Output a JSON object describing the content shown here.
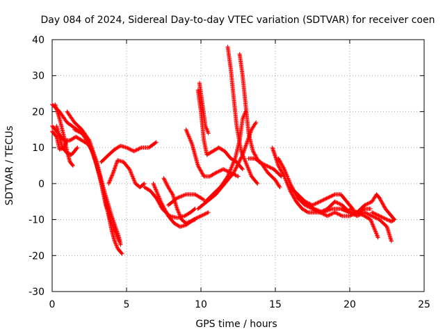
{
  "chart_data": {
    "type": "scatter",
    "title": "Day 084 of 2024, Sidereal Day-to-day VTEC variation (SDTVAR) for receiver coen",
    "xlabel": "GPS time / hours",
    "ylabel": "SDTVAR / TECUs",
    "xlim": [
      0,
      25
    ],
    "ylim": [
      -30,
      40
    ],
    "xticks": [
      0,
      5,
      10,
      15,
      20,
      25
    ],
    "yticks": [
      -30,
      -20,
      -10,
      0,
      10,
      20,
      30,
      40
    ],
    "xtick_labels": [
      "0",
      "5",
      "10",
      "15",
      "20",
      "25"
    ],
    "ytick_labels": [
      "-30",
      "-20",
      "-10",
      "0",
      "10",
      "20",
      "30",
      "40"
    ],
    "grid": true,
    "marker": "+",
    "color": "#ff0000",
    "series": [
      {
        "name": "s1",
        "points": [
          [
            0.0,
            16
          ],
          [
            0.4,
            14
          ],
          [
            0.8,
            12
          ],
          [
            1.2,
            12
          ],
          [
            1.6,
            13
          ],
          [
            2.0,
            12
          ],
          [
            2.4,
            11
          ],
          [
            2.7,
            9
          ]
        ]
      },
      {
        "name": "s2",
        "points": [
          [
            0.0,
            22
          ],
          [
            0.5,
            20
          ],
          [
            1.0,
            17
          ],
          [
            1.5,
            15.5
          ],
          [
            2.0,
            14
          ],
          [
            2.4,
            12
          ],
          [
            2.8,
            8
          ],
          [
            3.2,
            2
          ],
          [
            3.6,
            -5
          ],
          [
            4.0,
            -13
          ],
          [
            4.2,
            -16
          ],
          [
            4.4,
            -18
          ],
          [
            4.7,
            -19.5
          ]
        ]
      },
      {
        "name": "s3",
        "points": [
          [
            0.0,
            14.5
          ],
          [
            0.3,
            13
          ],
          [
            0.5,
            9.5
          ],
          [
            0.8,
            10
          ],
          [
            1.0,
            12
          ]
        ]
      },
      {
        "name": "s4",
        "points": [
          [
            0.2,
            22
          ],
          [
            0.5,
            18
          ],
          [
            0.8,
            13
          ],
          [
            1.0,
            9
          ],
          [
            1.2,
            6
          ],
          [
            1.4,
            5
          ]
        ]
      },
      {
        "name": "s5",
        "points": [
          [
            0.3,
            16
          ],
          [
            0.7,
            10
          ],
          [
            1.0,
            8.5
          ],
          [
            1.3,
            8
          ],
          [
            1.7,
            10
          ]
        ]
      },
      {
        "name": "s6",
        "points": [
          [
            1.0,
            20
          ],
          [
            1.5,
            17
          ],
          [
            2.0,
            15
          ],
          [
            2.5,
            12
          ],
          [
            3.0,
            6
          ],
          [
            3.5,
            -2
          ],
          [
            4.0,
            -9
          ],
          [
            4.5,
            -15
          ],
          [
            4.6,
            -17
          ]
        ]
      },
      {
        "name": "s7",
        "points": [
          [
            1.5,
            15
          ],
          [
            2.0,
            14
          ],
          [
            2.5,
            11
          ],
          [
            3.0,
            5
          ],
          [
            3.3,
            0
          ],
          [
            3.6,
            -6
          ],
          [
            4.0,
            -11
          ],
          [
            4.3,
            -14
          ],
          [
            4.5,
            -16
          ]
        ]
      },
      {
        "name": "s8",
        "points": [
          [
            3.3,
            6
          ],
          [
            3.8,
            8
          ],
          [
            4.2,
            9.5
          ],
          [
            4.6,
            10.5
          ],
          [
            5.0,
            10
          ],
          [
            5.5,
            9
          ],
          [
            6.0,
            10
          ],
          [
            6.5,
            10
          ],
          [
            7.0,
            11.5
          ]
        ]
      },
      {
        "name": "s9",
        "points": [
          [
            3.8,
            0
          ],
          [
            4.1,
            3
          ],
          [
            4.4,
            6.5
          ],
          [
            4.8,
            6
          ],
          [
            5.2,
            4
          ],
          [
            5.6,
            0
          ],
          [
            5.9,
            -1
          ],
          [
            6.2,
            0
          ]
        ]
      },
      {
        "name": "s10",
        "points": [
          [
            6.2,
            -1
          ],
          [
            6.6,
            -2
          ],
          [
            7.0,
            -4
          ],
          [
            7.4,
            -7
          ],
          [
            7.9,
            -9
          ],
          [
            8.4,
            -9.5
          ],
          [
            8.9,
            -9
          ],
          [
            9.3,
            -8
          ],
          [
            9.6,
            -7
          ]
        ]
      },
      {
        "name": "s11",
        "points": [
          [
            7.5,
            1.5
          ],
          [
            7.8,
            -1
          ],
          [
            8.1,
            -3
          ],
          [
            8.4,
            -7
          ],
          [
            8.7,
            -10
          ],
          [
            9.0,
            -11
          ],
          [
            9.3,
            -10.5
          ],
          [
            9.6,
            -10
          ]
        ]
      },
      {
        "name": "s12",
        "points": [
          [
            6.8,
            0
          ],
          [
            7.3,
            -5
          ],
          [
            7.8,
            -9
          ],
          [
            8.2,
            -11
          ],
          [
            8.6,
            -12
          ],
          [
            9.0,
            -11.5
          ],
          [
            9.5,
            -10
          ],
          [
            10.0,
            -9
          ],
          [
            10.5,
            -8
          ]
        ]
      },
      {
        "name": "s13",
        "points": [
          [
            7.8,
            -6
          ],
          [
            8.4,
            -4
          ],
          [
            9.0,
            -3
          ],
          [
            9.6,
            -3
          ],
          [
            10.2,
            -4.5
          ]
        ]
      },
      {
        "name": "s14",
        "points": [
          [
            9.0,
            15
          ],
          [
            9.4,
            11
          ],
          [
            9.8,
            5
          ],
          [
            10.2,
            2
          ],
          [
            10.6,
            2
          ],
          [
            11.0,
            3
          ],
          [
            11.5,
            4
          ],
          [
            12.0,
            3
          ],
          [
            12.5,
            2
          ]
        ]
      },
      {
        "name": "s15",
        "points": [
          [
            9.8,
            26
          ],
          [
            10.0,
            20
          ],
          [
            10.2,
            12
          ],
          [
            10.4,
            8
          ],
          [
            10.8,
            9
          ],
          [
            11.2,
            10
          ],
          [
            11.6,
            9
          ],
          [
            12.0,
            7
          ],
          [
            12.4,
            6
          ],
          [
            12.8,
            4
          ]
        ]
      },
      {
        "name": "s16",
        "points": [
          [
            9.9,
            28
          ],
          [
            10.1,
            22
          ],
          [
            10.3,
            16
          ],
          [
            10.5,
            14
          ]
        ]
      },
      {
        "name": "s17",
        "points": [
          [
            9.8,
            -7
          ],
          [
            10.4,
            -5
          ],
          [
            11.0,
            -3
          ],
          [
            11.6,
            0
          ],
          [
            12.2,
            3
          ],
          [
            12.8,
            8
          ],
          [
            13.4,
            15
          ],
          [
            13.7,
            17
          ]
        ]
      },
      {
        "name": "s18",
        "points": [
          [
            10.3,
            -5
          ],
          [
            10.8,
            -3
          ],
          [
            11.3,
            -1
          ],
          [
            11.8,
            2
          ],
          [
            12.3,
            7
          ],
          [
            12.6,
            12
          ],
          [
            12.8,
            18
          ],
          [
            13.0,
            20
          ]
        ]
      },
      {
        "name": "s19",
        "points": [
          [
            11.8,
            38
          ],
          [
            12.0,
            32
          ],
          [
            12.2,
            24
          ],
          [
            12.4,
            16
          ],
          [
            12.7,
            9
          ],
          [
            13.0,
            6
          ],
          [
            13.4,
            2
          ],
          [
            13.8,
            0
          ]
        ]
      },
      {
        "name": "s20",
        "points": [
          [
            12.6,
            36
          ],
          [
            12.8,
            30
          ],
          [
            13.0,
            22
          ],
          [
            13.2,
            14
          ],
          [
            13.5,
            9
          ],
          [
            13.9,
            6
          ],
          [
            14.4,
            5
          ],
          [
            14.9,
            4
          ],
          [
            15.4,
            2
          ]
        ]
      },
      {
        "name": "s21",
        "points": [
          [
            13.2,
            7
          ],
          [
            13.6,
            7
          ],
          [
            14.0,
            6
          ],
          [
            14.5,
            3
          ],
          [
            15.0,
            1
          ],
          [
            15.3,
            -1
          ]
        ]
      },
      {
        "name": "s22",
        "points": [
          [
            14.8,
            10
          ],
          [
            15.2,
            5
          ],
          [
            15.6,
            2
          ],
          [
            16.0,
            -2
          ],
          [
            16.4,
            -5
          ],
          [
            16.8,
            -7
          ],
          [
            17.2,
            -8
          ],
          [
            17.6,
            -8
          ],
          [
            18.0,
            -8
          ],
          [
            18.5,
            -7
          ],
          [
            19.0,
            -5
          ],
          [
            19.5,
            -6
          ],
          [
            20.0,
            -8
          ]
        ]
      },
      {
        "name": "s23",
        "points": [
          [
            15.2,
            7
          ],
          [
            15.6,
            4
          ],
          [
            16.0,
            0
          ],
          [
            16.5,
            -4
          ],
          [
            17.0,
            -6
          ],
          [
            17.5,
            -7
          ],
          [
            18.0,
            -8
          ],
          [
            18.5,
            -9
          ],
          [
            19.0,
            -8
          ],
          [
            19.5,
            -9
          ],
          [
            20.0,
            -9
          ],
          [
            20.5,
            -8
          ]
        ]
      },
      {
        "name": "s24",
        "points": [
          [
            16.0,
            -1
          ],
          [
            16.5,
            -3
          ],
          [
            17.0,
            -5
          ],
          [
            17.5,
            -6
          ],
          [
            18.0,
            -5
          ],
          [
            18.5,
            -4
          ],
          [
            19.0,
            -3
          ],
          [
            19.4,
            -3
          ],
          [
            19.8,
            -5
          ],
          [
            20.2,
            -7
          ]
        ]
      },
      {
        "name": "s25",
        "points": [
          [
            17.0,
            -5
          ],
          [
            17.6,
            -7
          ],
          [
            18.2,
            -8
          ],
          [
            18.8,
            -7
          ],
          [
            19.4,
            -7
          ],
          [
            20.0,
            -8
          ],
          [
            20.6,
            -8
          ],
          [
            21.0,
            -7
          ],
          [
            21.4,
            -7
          ]
        ]
      },
      {
        "name": "s26",
        "points": [
          [
            19.5,
            -7
          ],
          [
            20.0,
            -8
          ],
          [
            20.5,
            -9
          ],
          [
            21.0,
            -8
          ],
          [
            21.5,
            -9
          ],
          [
            22.0,
            -10
          ],
          [
            22.5,
            -12
          ],
          [
            22.8,
            -16
          ]
        ]
      },
      {
        "name": "s27",
        "points": [
          [
            20.0,
            -7
          ],
          [
            20.5,
            -8
          ],
          [
            21.0,
            -6
          ],
          [
            21.5,
            -5
          ],
          [
            21.8,
            -3
          ],
          [
            22.0,
            -4
          ],
          [
            22.4,
            -7
          ],
          [
            22.8,
            -9
          ],
          [
            23.0,
            -10
          ]
        ]
      },
      {
        "name": "s28",
        "points": [
          [
            20.5,
            -8
          ],
          [
            21.0,
            -9
          ],
          [
            21.4,
            -10
          ],
          [
            21.7,
            -13
          ],
          [
            21.9,
            -15
          ]
        ]
      },
      {
        "name": "s29",
        "points": [
          [
            21.5,
            -8
          ],
          [
            22.0,
            -9
          ],
          [
            22.5,
            -10
          ],
          [
            22.8,
            -10.5
          ],
          [
            23.0,
            -10
          ]
        ]
      }
    ]
  }
}
